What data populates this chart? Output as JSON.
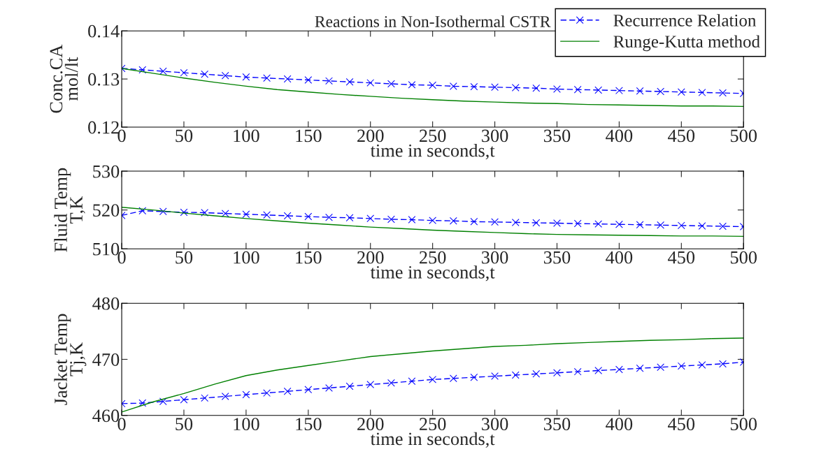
{
  "chart_data": [
    {
      "type": "line",
      "title": "Reactions in Non-Isothermal CSTR",
      "xlabel": "time in seconds,t",
      "ylabel": "Conc.CA\nmol/lt",
      "xlim": [
        0,
        500
      ],
      "xticks": [
        0,
        50,
        100,
        150,
        200,
        250,
        300,
        350,
        400,
        450,
        500
      ],
      "ylim": [
        0.12,
        0.14
      ],
      "yticks": [
        0.12,
        0.13,
        0.14
      ],
      "grid": false,
      "legend": "top right",
      "series": [
        {
          "name": "Recurrence Relation",
          "color": "#0000ff",
          "marker": "cross",
          "line_style": "dashed",
          "x": [
            0,
            16.7,
            33.3,
            50,
            66.7,
            83.3,
            100,
            116.7,
            133.3,
            150,
            166.7,
            183.3,
            200,
            216.7,
            233.3,
            250,
            266.7,
            283.3,
            300,
            316.7,
            333.3,
            350,
            366.7,
            383.3,
            400,
            416.7,
            433.3,
            450,
            466.7,
            483.3,
            500
          ],
          "values": [
            0.1322,
            0.1319,
            0.1316,
            0.1313,
            0.131,
            0.1307,
            0.1304,
            0.1302,
            0.13,
            0.1298,
            0.1296,
            0.1294,
            0.1292,
            0.129,
            0.1288,
            0.1287,
            0.1285,
            0.1284,
            0.1283,
            0.1282,
            0.1281,
            0.1279,
            0.1278,
            0.1277,
            0.1276,
            0.1275,
            0.1274,
            0.1273,
            0.1272,
            0.1271,
            0.127
          ]
        },
        {
          "name": "Runge-Kutta method",
          "color": "#008000",
          "marker": "none",
          "line_style": "solid",
          "x": [
            0,
            25,
            50,
            75,
            100,
            125,
            150,
            175,
            200,
            225,
            250,
            275,
            300,
            325,
            350,
            375,
            400,
            425,
            450,
            475,
            500
          ],
          "values": [
            0.1322,
            0.1312,
            0.1302,
            0.1293,
            0.1285,
            0.1278,
            0.1273,
            0.1268,
            0.1264,
            0.126,
            0.1257,
            0.1254,
            0.1252,
            0.125,
            0.1249,
            0.1247,
            0.1246,
            0.1245,
            0.1244,
            0.1244,
            0.1243
          ]
        }
      ]
    },
    {
      "type": "line",
      "xlabel": "time in seconds,t",
      "ylabel": "Fluid Temp\nT,K",
      "xlim": [
        0,
        500
      ],
      "xticks": [
        0,
        50,
        100,
        150,
        200,
        250,
        300,
        350,
        400,
        450,
        500
      ],
      "ylim": [
        510,
        530
      ],
      "yticks": [
        510,
        520,
        530
      ],
      "grid": false,
      "series": [
        {
          "color": "#0000ff",
          "marker": "cross",
          "line_style": "dashed",
          "x": [
            0,
            16.7,
            33.3,
            50,
            66.7,
            83.3,
            100,
            116.7,
            133.3,
            150,
            166.7,
            183.3,
            200,
            216.7,
            233.3,
            250,
            266.7,
            283.3,
            300,
            316.7,
            333.3,
            350,
            366.7,
            383.3,
            400,
            416.7,
            433.3,
            450,
            466.7,
            483.3,
            500
          ],
          "values": [
            518.6,
            519.8,
            519.6,
            519.4,
            519.3,
            519.1,
            518.9,
            518.7,
            518.5,
            518.3,
            518.1,
            518.0,
            517.8,
            517.6,
            517.5,
            517.3,
            517.2,
            517.0,
            516.9,
            516.8,
            516.7,
            516.6,
            516.5,
            516.4,
            516.3,
            516.2,
            516.1,
            516.0,
            515.9,
            515.8,
            515.7
          ]
        },
        {
          "color": "#008000",
          "marker": "none",
          "line_style": "solid",
          "x": [
            0,
            25,
            50,
            75,
            100,
            125,
            150,
            175,
            200,
            225,
            250,
            275,
            300,
            325,
            350,
            375,
            400,
            425,
            450,
            475,
            500
          ],
          "values": [
            520.7,
            520.0,
            519.2,
            518.5,
            517.8,
            517.2,
            516.6,
            516.1,
            515.6,
            515.2,
            514.8,
            514.5,
            514.2,
            513.9,
            513.7,
            513.6,
            513.5,
            513.4,
            513.3,
            513.3,
            513.2
          ]
        }
      ]
    },
    {
      "type": "line",
      "xlabel": "time in seconds,t",
      "ylabel": "Jacket Temp\nTj,K",
      "xlim": [
        0,
        500
      ],
      "xticks": [
        0,
        50,
        100,
        150,
        200,
        250,
        300,
        350,
        400,
        450,
        500
      ],
      "ylim": [
        460,
        480
      ],
      "yticks": [
        460,
        470,
        480
      ],
      "grid": false,
      "series": [
        {
          "color": "#0000ff",
          "marker": "cross",
          "line_style": "dashed",
          "x": [
            0,
            16.7,
            33.3,
            50,
            66.7,
            83.3,
            100,
            116.7,
            133.3,
            150,
            166.7,
            183.3,
            200,
            216.7,
            233.3,
            250,
            266.7,
            283.3,
            300,
            316.7,
            333.3,
            350,
            366.7,
            383.3,
            400,
            416.7,
            433.3,
            450,
            466.7,
            483.3,
            500
          ],
          "values": [
            462.1,
            462.2,
            462.5,
            462.8,
            463.1,
            463.4,
            463.7,
            464.0,
            464.3,
            464.6,
            464.9,
            465.2,
            465.5,
            465.8,
            466.1,
            466.4,
            466.6,
            466.8,
            467.0,
            467.2,
            467.4,
            467.6,
            467.8,
            468.0,
            468.2,
            468.4,
            468.6,
            468.8,
            469.0,
            469.2,
            469.5
          ]
        },
        {
          "color": "#008000",
          "marker": "none",
          "line_style": "solid",
          "x": [
            0,
            25,
            50,
            75,
            100,
            125,
            150,
            175,
            200,
            225,
            250,
            275,
            300,
            325,
            350,
            375,
            400,
            425,
            450,
            475,
            500
          ],
          "values": [
            460.6,
            462.4,
            463.9,
            465.6,
            467.1,
            468.1,
            468.9,
            469.7,
            470.5,
            471.0,
            471.5,
            471.9,
            472.3,
            472.5,
            472.8,
            473.0,
            473.2,
            473.4,
            473.5,
            473.7,
            473.8
          ]
        }
      ]
    }
  ]
}
